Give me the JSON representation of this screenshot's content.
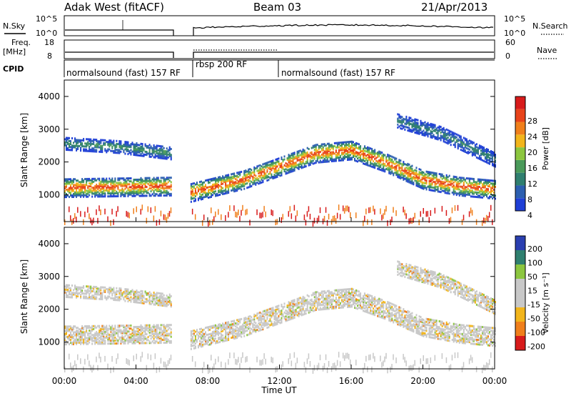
{
  "header": {
    "station": "Adak West (fitACF)",
    "beam": "Beam 03",
    "date": "21/Apr/2013"
  },
  "strip_labels": {
    "nsky": "N.Sky",
    "nsearch": "N.Search",
    "freq": "Freq.",
    "mhz": "[MHz]",
    "nave": "Nave",
    "cpid": "CPID",
    "nsky_ticks": [
      "10^5",
      "10^0"
    ],
    "nsearch_ticks": [
      "10^5",
      "10^0"
    ],
    "freq_ticks": [
      "18",
      "8"
    ],
    "nave_ticks": [
      "60",
      "0"
    ]
  },
  "cpid_segments": [
    {
      "label": "normalsound (fast) 157 RF",
      "start": 0,
      "end": 6
    },
    {
      "label": "rbsp 200 RF",
      "start": 7,
      "end": 12
    },
    {
      "label": "normalsound (fast) 157 RF",
      "start": 12,
      "end": 24
    }
  ],
  "chart_data": [
    {
      "type": "heatmap",
      "name": "power",
      "ylabel": "Slant Range [km]",
      "xlabel": "Time UT",
      "xlim": [
        0,
        24
      ],
      "ylim": [
        180,
        4500
      ],
      "y_ticks": [
        "1000",
        "2000",
        "3000",
        "4000"
      ],
      "x_ticks": [
        "00:00",
        "04:00",
        "08:00",
        "12:00",
        "16:00",
        "20:00",
        "00:00"
      ],
      "colorbar_label": "Power [dB]",
      "colorbar_ticks": [
        "28",
        "24",
        "20",
        "16",
        "12",
        "8",
        "4"
      ],
      "data_gap_ut": [
        6,
        7
      ],
      "bands": [
        {
          "desc": "main scatter layer",
          "from_ut": 0,
          "to_ut": 24,
          "center_km": [
            [
              0,
              1250
            ],
            [
              6,
              1300
            ],
            [
              7,
              1100
            ],
            [
              10,
              1500
            ],
            [
              12,
              1900
            ],
            [
              14,
              2300
            ],
            [
              16,
              2400
            ],
            [
              18,
              2000
            ],
            [
              20,
              1500
            ],
            [
              22,
              1300
            ],
            [
              24,
              1200
            ]
          ],
          "half_width_km": 180,
          "peak_dB": 28
        },
        {
          "desc": "upper band early",
          "from_ut": 0,
          "to_ut": 6,
          "center_km": [
            [
              0,
              2600
            ],
            [
              3,
              2500
            ],
            [
              6,
              2300
            ]
          ],
          "half_width_km": 120,
          "peak_dB": 12
        },
        {
          "desc": "far range arc",
          "from_ut": 18.5,
          "to_ut": 24,
          "center_km": [
            [
              18.5,
              3300
            ],
            [
              21,
              2900
            ],
            [
              24,
              2100
            ]
          ],
          "half_width_km": 130,
          "peak_dB": 10
        }
      ]
    },
    {
      "type": "heatmap",
      "name": "velocity",
      "ylabel": "Slant Range [km]",
      "xlabel": "Time UT",
      "xlim": [
        0,
        24
      ],
      "ylim": [
        180,
        4500
      ],
      "y_ticks": [
        "1000",
        "2000",
        "3000",
        "4000"
      ],
      "x_ticks": [
        "00:00",
        "04:00",
        "08:00",
        "12:00",
        "16:00",
        "20:00",
        "00:00"
      ],
      "colorbar_label": "Velocity [m s⁻¹]",
      "colorbar_ticks": [
        "200",
        "100",
        "50",
        "15",
        "-15",
        "-50",
        "-100",
        "-200"
      ],
      "dominant_value_m_s": 0,
      "data_gap_ut": [
        6,
        7
      ]
    }
  ],
  "colors": {
    "power_scale": [
      "#1f3fd6",
      "#2c5fb0",
      "#2f7f6f",
      "#4a9a5a",
      "#8cc63f",
      "#f2b51b",
      "#f07f1b",
      "#e8431a",
      "#d81b1b"
    ],
    "velocity_scale": [
      "#d81b1b",
      "#f07f1b",
      "#f2b51b",
      "#c8c8c8",
      "#c8c8c8",
      "#8cc63f",
      "#2f7f6f",
      "#2a3fb0"
    ]
  },
  "footer": {
    "xlabel": "Time UT"
  }
}
